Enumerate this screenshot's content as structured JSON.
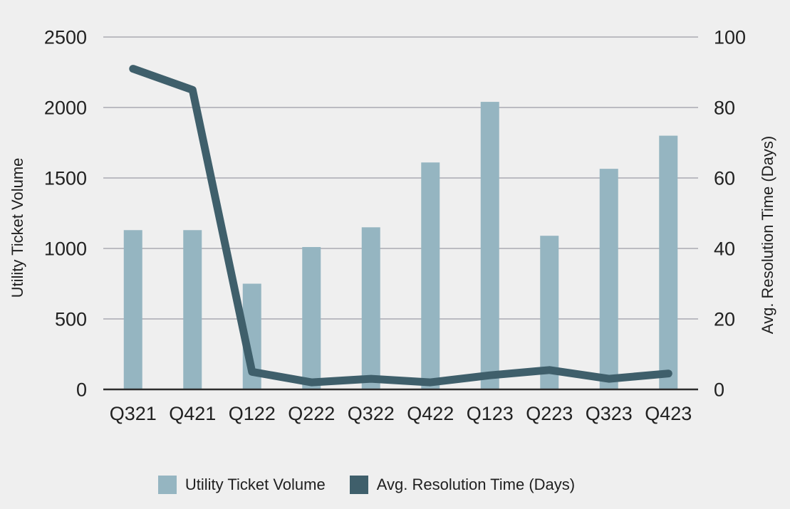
{
  "chart_data": {
    "type": "bar+line combo, dual axis",
    "categories": [
      "Q321",
      "Q421",
      "Q122",
      "Q222",
      "Q322",
      "Q422",
      "Q123",
      "Q223",
      "Q323",
      "Q423"
    ],
    "series": [
      {
        "name": "Utility Ticket Volume",
        "type": "bar",
        "axis": "left",
        "color": "#95b5c1",
        "values": [
          1130,
          1130,
          750,
          1010,
          1150,
          1610,
          2040,
          1090,
          1565,
          1800
        ]
      },
      {
        "name": "Avg. Resolution Time (Days)",
        "type": "line",
        "axis": "right",
        "color": "#3f5f6b",
        "values": [
          91,
          85,
          5,
          2,
          3,
          2,
          4,
          5.5,
          3,
          4.5
        ]
      }
    ],
    "left_axis": {
      "label": "Utility Ticket Volume",
      "min": 0,
      "max": 2500,
      "ticks": [
        0,
        500,
        1000,
        1500,
        2000,
        2500
      ]
    },
    "right_axis": {
      "label": "Avg. Resolution Time (Days)",
      "min": 0,
      "max": 100,
      "ticks": [
        0,
        20,
        40,
        60,
        80,
        100
      ]
    },
    "title": "",
    "grid": true,
    "legend_position": "bottom"
  },
  "style": {
    "background": "#efefef",
    "gridline_color": "#aaaab2",
    "baseline_color": "#2d2d2d",
    "text_color": "#212121",
    "bar_color": "#95b5c1",
    "line_color": "#3f5f6b"
  }
}
